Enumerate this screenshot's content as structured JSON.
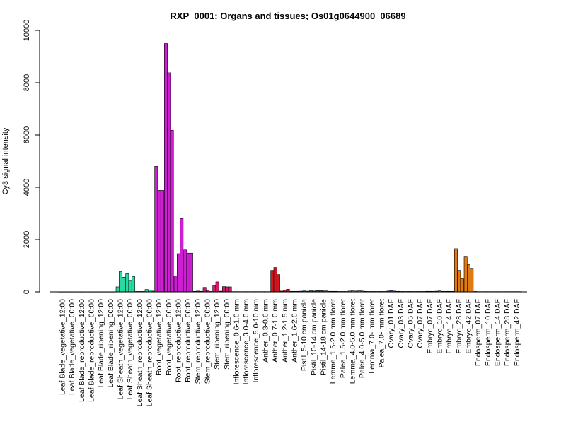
{
  "chart_data": {
    "type": "bar",
    "title": "RXP_0001: Organs and tissues; Os01g0644900_06689",
    "xlabel": "",
    "ylabel": "Cy3 signal intensity",
    "ylim": [
      0,
      10000
    ],
    "y_ticks": [
      0,
      2000,
      4000,
      6000,
      8000,
      10000
    ],
    "grid": false,
    "categories": [
      "Leaf Blade_vegetative_12:00",
      "Leaf Blade_vegetative_00:00",
      "Leaf Blade_reproductive_12:00",
      "Leaf Blade_reproductive_00:00",
      "Leaf Blade_ripening_12:00",
      "Leaf Blade_ripening_00:00",
      "Leaf Sheath_vegetative_12:00",
      "Leaf Sheath_vegetative_00:00",
      "Leaf Sheath_reproductive_12:00",
      "Leaf Sheath_reproductive_00:00",
      "Root_vegetative_12:00",
      "Root_vegetative_00:00",
      "Root_reproductive_12:00",
      "Root_reproductive_00:00",
      "Stem_reproductive_12:00",
      "Stem_reproductive_00:00",
      "Stem_ripening_12:00",
      "Stem_ripening_00:00",
      "Inflorescence_0.6-1.0 mm",
      "Inflorescence_3.0-4.0 mm",
      "Inflorescence_5.0-10 mm",
      "Anther_0.3-0.6 mm",
      "Anther_0.7-1.0 mm",
      "Anther_1.2-1.5 mm",
      "Anther_1.6-2.0 mm",
      "Pistil_5-10 cm panicle",
      "Pistil_10-14 cm panicle",
      "Pistil_14-18 cm panicle",
      "Lemma_1.5-2.0 mm floret",
      "Palea_1.5-2.0 mm floret",
      "Lemma_4.0-5.0 mm floret",
      "Palea_4.0-5.0 mm floret",
      "Lemma_7.0- mm floret",
      "Palea_7.0- mm floret",
      "Ovary_01 DAF",
      "Ovary_03 DAF",
      "Ovary_05 DAF",
      "Ovary_07 DAF",
      "Embryo_07 DAF",
      "Embryo_10 DAF",
      "Embryo_14 DAF",
      "Embryo_28 DAF",
      "Embryo_42 DAF",
      "Endosperm_07 DAF",
      "Endosperm_10 DAF",
      "Endosperm_14 DAF",
      "Endosperm_28 DAF",
      "Endosperm_42 DAF"
    ],
    "replicate_values": [
      [
        5,
        5,
        5
      ],
      [
        5,
        5,
        5
      ],
      [
        5,
        5,
        5
      ],
      [
        5,
        5,
        5
      ],
      [
        5,
        5,
        5
      ],
      [
        5,
        5,
        5
      ],
      [
        190,
        770,
        560
      ],
      [
        690,
        440,
        590
      ],
      [
        15,
        15,
        15
      ],
      [
        90,
        70,
        30
      ],
      [
        4800,
        3880,
        3880
      ],
      [
        9500,
        8380,
        6180
      ],
      [
        600,
        1460,
        2800
      ],
      [
        1600,
        1480,
        1480
      ],
      [
        20,
        30,
        20
      ],
      [
        170,
        60,
        15
      ],
      [
        230,
        380,
        25
      ],
      [
        200,
        190,
        190
      ],
      [
        10,
        10,
        10
      ],
      [
        10,
        10,
        10
      ],
      [
        10,
        10,
        10
      ],
      [
        10,
        10,
        10
      ],
      [
        820,
        930,
        660
      ],
      [
        30,
        60,
        100
      ],
      [
        20,
        20,
        20
      ],
      [
        25,
        35,
        25
      ],
      [
        40,
        30,
        50
      ],
      [
        50,
        35,
        35
      ],
      [
        20,
        20,
        20
      ],
      [
        15,
        15,
        15
      ],
      [
        30,
        40,
        30
      ],
      [
        40,
        30,
        20
      ],
      [
        15,
        15,
        15
      ],
      [
        15,
        15,
        15
      ],
      [
        30,
        50,
        30
      ],
      [
        20,
        15,
        15
      ],
      [
        15,
        15,
        15
      ],
      [
        15,
        15,
        15
      ],
      [
        20,
        20,
        20
      ],
      [
        25,
        35,
        20
      ],
      [
        20,
        20,
        20
      ],
      [
        1650,
        820,
        500
      ],
      [
        1360,
        1050,
        900
      ],
      [
        15,
        10,
        10
      ],
      [
        10,
        10,
        10
      ],
      [
        10,
        10,
        10
      ],
      [
        10,
        10,
        10
      ],
      [
        10,
        10,
        10
      ]
    ],
    "colors": {
      "Leaf Blade": "#2fc8ff",
      "Leaf Sheath": "#28d9a2",
      "Root": "#cc1fd1",
      "Stem": "#d41c6d",
      "Inflorescence": "#6f2a80",
      "Anther": "#d4161e",
      "Pistil": "#1f7a2d",
      "Lemma/Palea": "#c2a63c",
      "Ovary": "#3a5fbf",
      "Embryo": "#e07a12",
      "Endosperm": "#5a3d1a"
    },
    "category_color_keys": [
      "Leaf Blade",
      "Leaf Blade",
      "Leaf Blade",
      "Leaf Blade",
      "Leaf Blade",
      "Leaf Blade",
      "Leaf Sheath",
      "Leaf Sheath",
      "Leaf Sheath",
      "Leaf Sheath",
      "Root",
      "Root",
      "Root",
      "Root",
      "Stem",
      "Stem",
      "Stem",
      "Stem",
      "Inflorescence",
      "Inflorescence",
      "Inflorescence",
      "Anther",
      "Anther",
      "Anther",
      "Anther",
      "Pistil",
      "Pistil",
      "Pistil",
      "Lemma/Palea",
      "Lemma/Palea",
      "Lemma/Palea",
      "Lemma/Palea",
      "Lemma/Palea",
      "Lemma/Palea",
      "Ovary",
      "Ovary",
      "Ovary",
      "Ovary",
      "Embryo",
      "Embryo",
      "Embryo",
      "Embryo",
      "Embryo",
      "Endosperm",
      "Endosperm",
      "Endosperm",
      "Endosperm",
      "Endosperm"
    ]
  }
}
